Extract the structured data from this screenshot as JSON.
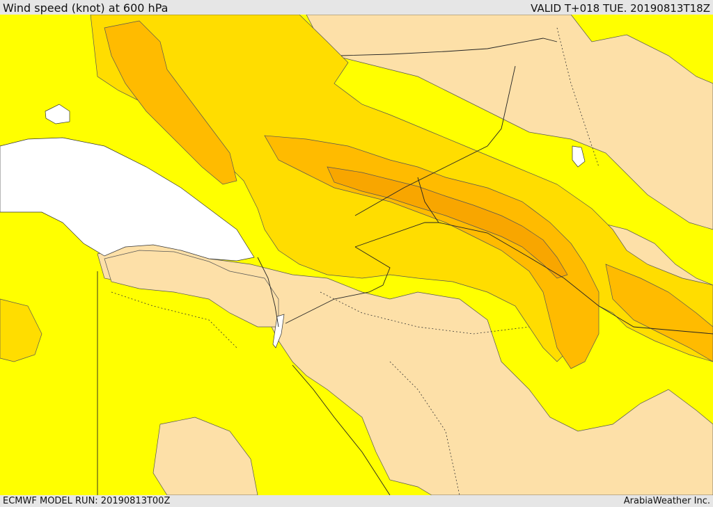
{
  "header": {
    "title": "Wind speed (knot) at 600 hPa",
    "valid": "VALID T+018 TUE. 20190813T18Z"
  },
  "footer": {
    "model_run": "ECMWF MODEL RUN: 20190813T00Z",
    "credit": "ArabiaWeather Inc."
  },
  "map": {
    "colors": {
      "land_background": "#ffff00",
      "low_speed": "#fde0a8",
      "band_1": "#ffdd00",
      "band_2": "#ffbb00",
      "band_3": "#f8a600",
      "water": "#ffffff",
      "borders": "#222222"
    }
  }
}
